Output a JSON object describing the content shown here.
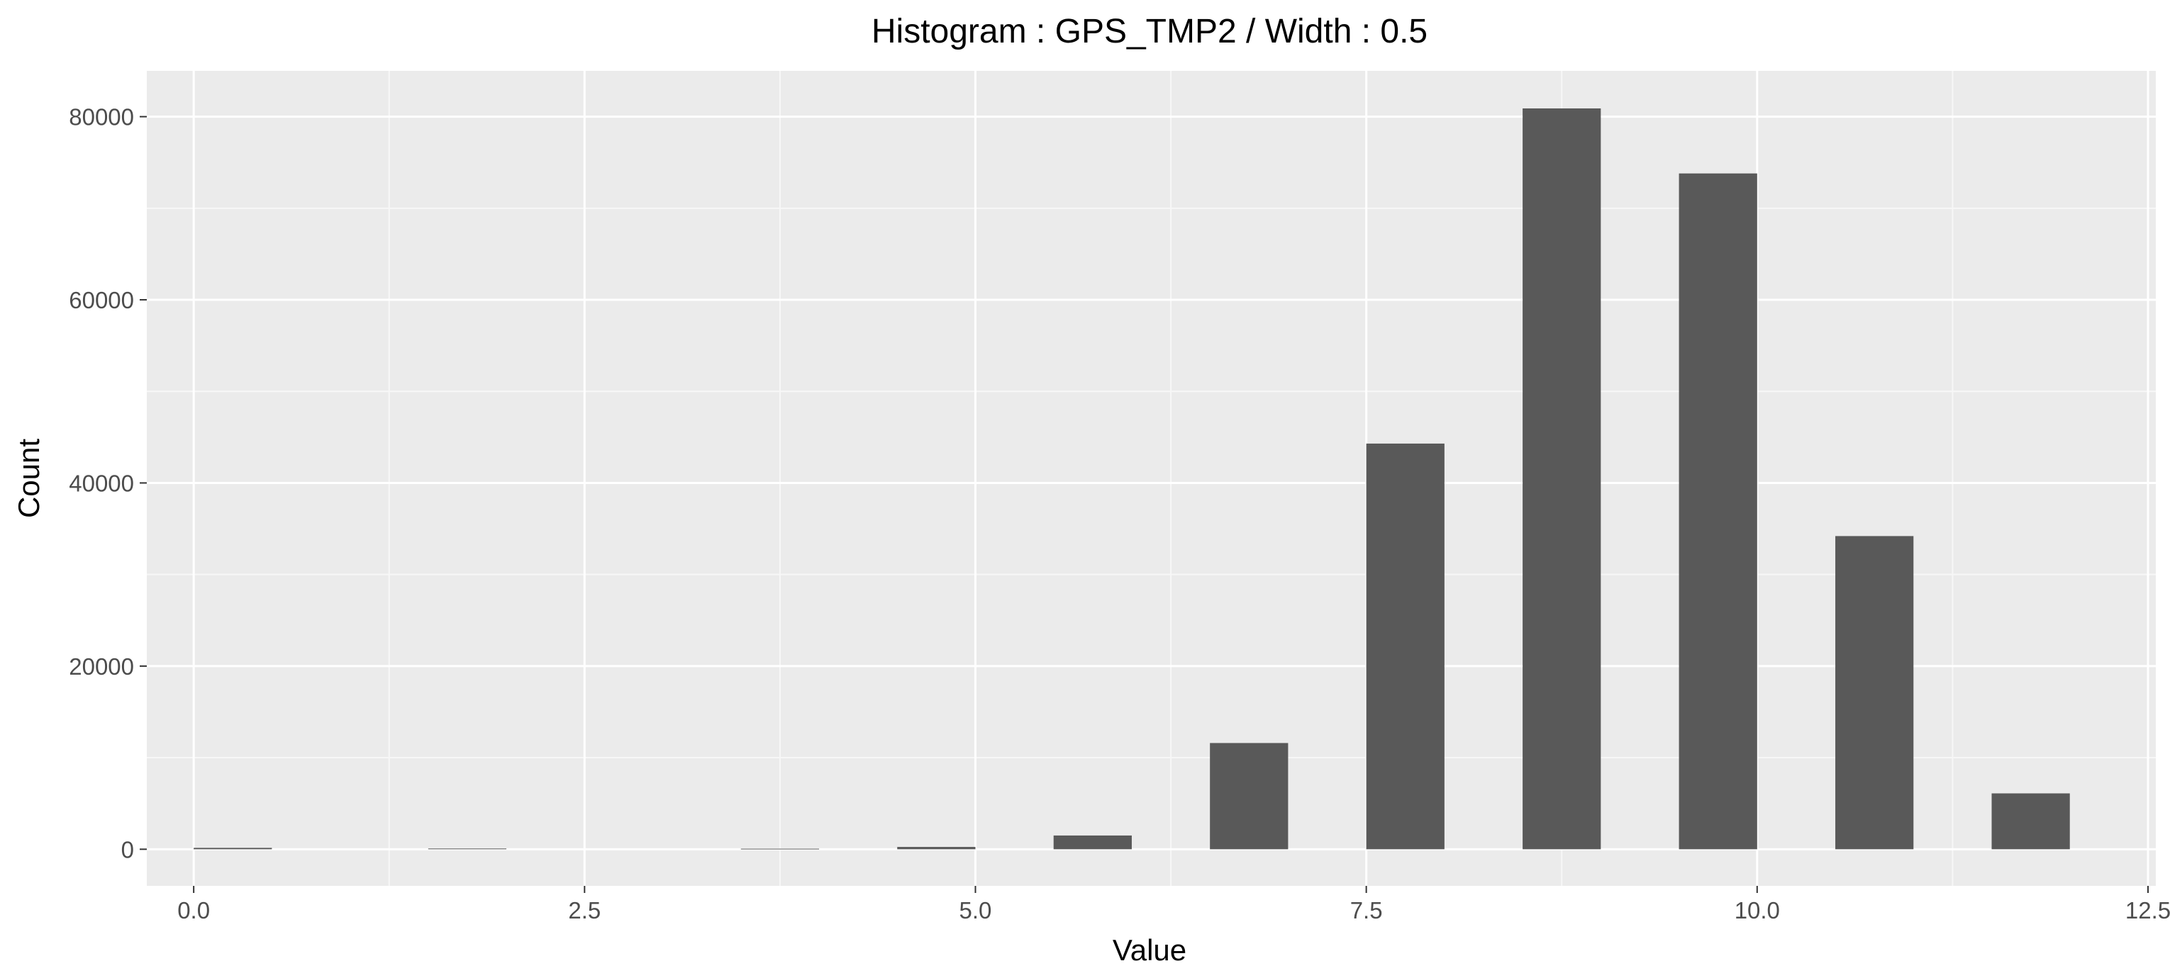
{
  "chart_data": {
    "type": "bar",
    "title": "Histogram : GPS_TMP2 / Width : 0.5",
    "xlabel": "Value",
    "ylabel": "Count",
    "xlim": [
      -0.3,
      12.55
    ],
    "ylim": [
      -4000,
      85000
    ],
    "x_ticks": [
      0.0,
      2.5,
      5.0,
      7.5,
      10.0,
      12.5
    ],
    "x_tick_labels": [
      "0.0",
      "2.5",
      "5.0",
      "7.5",
      "10.0",
      "12.5"
    ],
    "y_ticks": [
      0,
      20000,
      40000,
      60000,
      80000
    ],
    "y_tick_labels": [
      "0",
      "20000",
      "40000",
      "60000",
      "80000"
    ],
    "bin_width": 0.5,
    "bars": [
      {
        "x0": 0.0,
        "x1": 0.5,
        "count": 150
      },
      {
        "x0": 1.5,
        "x1": 2.0,
        "count": 80
      },
      {
        "x0": 3.5,
        "x1": 4.0,
        "count": 60
      },
      {
        "x0": 4.5,
        "x1": 5.0,
        "count": 250
      },
      {
        "x0": 5.5,
        "x1": 6.0,
        "count": 1500
      },
      {
        "x0": 6.5,
        "x1": 7.0,
        "count": 11600
      },
      {
        "x0": 7.5,
        "x1": 8.0,
        "count": 44300
      },
      {
        "x0": 8.5,
        "x1": 9.0,
        "count": 80900
      },
      {
        "x0": 9.5,
        "x1": 10.0,
        "count": 73800
      },
      {
        "x0": 10.5,
        "x1": 11.0,
        "count": 34200
      },
      {
        "x0": 11.5,
        "x1": 12.0,
        "count": 6100
      }
    ],
    "grid": true,
    "colors": {
      "panel_background": "#EBEBEB",
      "grid_major": "#FFFFFF",
      "grid_minor": "#F7F7F7",
      "bar_fill": "#595959",
      "tick_text": "#4D4D4D",
      "text": "#000000"
    }
  }
}
